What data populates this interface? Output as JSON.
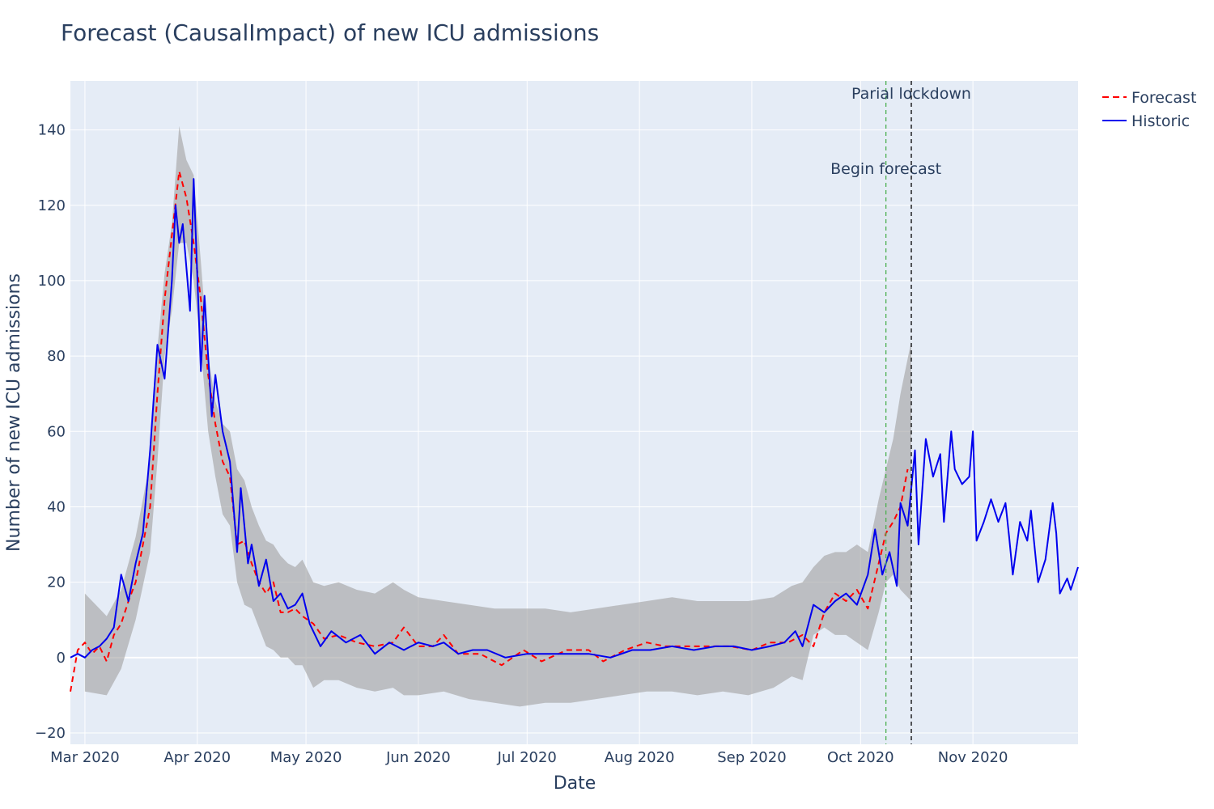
{
  "chart_data": {
    "type": "line",
    "title": "Forecast (CausalImpact) of new ICU admissions",
    "xlabel": "Date",
    "ylabel": "Number of new ICU admissions",
    "xlim": [
      "2020-02-26",
      "2020-11-30"
    ],
    "ylim": [
      -23,
      153
    ],
    "grid": true,
    "legend_position": "top-right",
    "colors": {
      "plot_background": "#e5ecf6",
      "grid": "#ffffff",
      "forecast": "#ff0000",
      "historic": "#0000ee",
      "band": "#a0a0a0",
      "partial_lockdown_line": "#4caf50",
      "begin_forecast_line": "#000000"
    },
    "x_ticks": [
      {
        "date": "2020-03-01",
        "label": "Mar 2020"
      },
      {
        "date": "2020-04-01",
        "label": "Apr 2020"
      },
      {
        "date": "2020-05-01",
        "label": "May 2020"
      },
      {
        "date": "2020-06-01",
        "label": "Jun 2020"
      },
      {
        "date": "2020-07-01",
        "label": "Jul 2020"
      },
      {
        "date": "2020-08-01",
        "label": "Aug 2020"
      },
      {
        "date": "2020-09-01",
        "label": "Sep 2020"
      },
      {
        "date": "2020-10-01",
        "label": "Oct 2020"
      },
      {
        "date": "2020-11-01",
        "label": "Nov 2020"
      }
    ],
    "y_ticks": [
      -20,
      0,
      20,
      40,
      60,
      80,
      100,
      120,
      140
    ],
    "vlines": [
      {
        "date": "2020-10-08",
        "label": "Begin forecast",
        "style": "dashed"
      },
      {
        "date": "2020-10-15",
        "label": "Parial lockdown",
        "style": "dashed"
      }
    ],
    "series": [
      {
        "name": "Forecast",
        "style": "dashed",
        "points": [
          [
            "2020-02-26",
            -9
          ],
          [
            "2020-02-28",
            2
          ],
          [
            "2020-03-01",
            4
          ],
          [
            "2020-03-03",
            1
          ],
          [
            "2020-03-05",
            3
          ],
          [
            "2020-03-07",
            -1
          ],
          [
            "2020-03-09",
            6
          ],
          [
            "2020-03-11",
            9
          ],
          [
            "2020-03-13",
            15
          ],
          [
            "2020-03-15",
            20
          ],
          [
            "2020-03-17",
            30
          ],
          [
            "2020-03-19",
            40
          ],
          [
            "2020-03-21",
            70
          ],
          [
            "2020-03-23",
            95
          ],
          [
            "2020-03-25",
            112
          ],
          [
            "2020-03-27",
            129
          ],
          [
            "2020-03-29",
            122
          ],
          [
            "2020-03-31",
            110
          ],
          [
            "2020-04-02",
            95
          ],
          [
            "2020-04-04",
            75
          ],
          [
            "2020-04-06",
            62
          ],
          [
            "2020-04-08",
            52
          ],
          [
            "2020-04-10",
            48
          ],
          [
            "2020-04-12",
            30
          ],
          [
            "2020-04-14",
            31
          ],
          [
            "2020-04-16",
            25
          ],
          [
            "2020-04-18",
            20
          ],
          [
            "2020-04-20",
            17
          ],
          [
            "2020-04-22",
            20
          ],
          [
            "2020-04-24",
            12
          ],
          [
            "2020-04-26",
            12
          ],
          [
            "2020-04-28",
            13
          ],
          [
            "2020-04-30",
            11
          ],
          [
            "2020-05-03",
            9
          ],
          [
            "2020-05-06",
            5
          ],
          [
            "2020-05-10",
            6
          ],
          [
            "2020-05-15",
            4
          ],
          [
            "2020-05-20",
            3
          ],
          [
            "2020-05-25",
            4
          ],
          [
            "2020-05-28",
            8
          ],
          [
            "2020-06-01",
            3
          ],
          [
            "2020-06-05",
            3
          ],
          [
            "2020-06-08",
            6
          ],
          [
            "2020-06-12",
            1
          ],
          [
            "2020-06-18",
            1
          ],
          [
            "2020-06-24",
            -2
          ],
          [
            "2020-06-30",
            2
          ],
          [
            "2020-07-05",
            -1
          ],
          [
            "2020-07-12",
            2
          ],
          [
            "2020-07-18",
            2
          ],
          [
            "2020-07-22",
            -1
          ],
          [
            "2020-07-28",
            2
          ],
          [
            "2020-08-03",
            4
          ],
          [
            "2020-08-08",
            3
          ],
          [
            "2020-08-14",
            3
          ],
          [
            "2020-08-20",
            3
          ],
          [
            "2020-08-26",
            3
          ],
          [
            "2020-09-01",
            2
          ],
          [
            "2020-09-06",
            4
          ],
          [
            "2020-09-11",
            4
          ],
          [
            "2020-09-15",
            6
          ],
          [
            "2020-09-18",
            3
          ],
          [
            "2020-09-21",
            12
          ],
          [
            "2020-09-24",
            17
          ],
          [
            "2020-09-27",
            15
          ],
          [
            "2020-09-30",
            18
          ],
          [
            "2020-10-03",
            13
          ],
          [
            "2020-10-06",
            25
          ],
          [
            "2020-10-08",
            33
          ],
          [
            "2020-10-10",
            36
          ],
          [
            "2020-10-12",
            40
          ],
          [
            "2020-10-14",
            50
          ]
        ]
      },
      {
        "name": "Historic",
        "style": "solid",
        "points": [
          [
            "2020-02-26",
            0
          ],
          [
            "2020-02-28",
            1
          ],
          [
            "2020-03-01",
            0
          ],
          [
            "2020-03-03",
            2
          ],
          [
            "2020-03-05",
            3
          ],
          [
            "2020-03-07",
            5
          ],
          [
            "2020-03-09",
            8
          ],
          [
            "2020-03-11",
            22
          ],
          [
            "2020-03-13",
            15
          ],
          [
            "2020-03-15",
            25
          ],
          [
            "2020-03-17",
            33
          ],
          [
            "2020-03-19",
            55
          ],
          [
            "2020-03-21",
            83
          ],
          [
            "2020-03-23",
            74
          ],
          [
            "2020-03-25",
            100
          ],
          [
            "2020-03-26",
            120
          ],
          [
            "2020-03-27",
            110
          ],
          [
            "2020-03-28",
            115
          ],
          [
            "2020-03-30",
            92
          ],
          [
            "2020-03-31",
            127
          ],
          [
            "2020-04-02",
            76
          ],
          [
            "2020-04-03",
            96
          ],
          [
            "2020-04-05",
            64
          ],
          [
            "2020-04-06",
            75
          ],
          [
            "2020-04-08",
            60
          ],
          [
            "2020-04-10",
            52
          ],
          [
            "2020-04-12",
            28
          ],
          [
            "2020-04-13",
            45
          ],
          [
            "2020-04-15",
            25
          ],
          [
            "2020-04-16",
            30
          ],
          [
            "2020-04-18",
            19
          ],
          [
            "2020-04-20",
            26
          ],
          [
            "2020-04-22",
            15
          ],
          [
            "2020-04-24",
            17
          ],
          [
            "2020-04-26",
            13
          ],
          [
            "2020-04-28",
            14
          ],
          [
            "2020-04-30",
            17
          ],
          [
            "2020-05-02",
            9
          ],
          [
            "2020-05-05",
            3
          ],
          [
            "2020-05-08",
            7
          ],
          [
            "2020-05-12",
            4
          ],
          [
            "2020-05-16",
            6
          ],
          [
            "2020-05-20",
            1
          ],
          [
            "2020-05-24",
            4
          ],
          [
            "2020-05-28",
            2
          ],
          [
            "2020-06-01",
            4
          ],
          [
            "2020-06-05",
            3
          ],
          [
            "2020-06-08",
            4
          ],
          [
            "2020-06-12",
            1
          ],
          [
            "2020-06-16",
            2
          ],
          [
            "2020-06-20",
            2
          ],
          [
            "2020-06-25",
            0
          ],
          [
            "2020-07-01",
            1
          ],
          [
            "2020-07-06",
            1
          ],
          [
            "2020-07-12",
            1
          ],
          [
            "2020-07-18",
            1
          ],
          [
            "2020-07-24",
            0
          ],
          [
            "2020-07-30",
            2
          ],
          [
            "2020-08-04",
            2
          ],
          [
            "2020-08-10",
            3
          ],
          [
            "2020-08-16",
            2
          ],
          [
            "2020-08-22",
            3
          ],
          [
            "2020-08-27",
            3
          ],
          [
            "2020-09-01",
            2
          ],
          [
            "2020-09-06",
            3
          ],
          [
            "2020-09-10",
            4
          ],
          [
            "2020-09-13",
            7
          ],
          [
            "2020-09-15",
            3
          ],
          [
            "2020-09-18",
            14
          ],
          [
            "2020-09-21",
            12
          ],
          [
            "2020-09-24",
            15
          ],
          [
            "2020-09-27",
            17
          ],
          [
            "2020-09-30",
            14
          ],
          [
            "2020-10-03",
            22
          ],
          [
            "2020-10-05",
            34
          ],
          [
            "2020-10-07",
            22
          ],
          [
            "2020-10-09",
            28
          ],
          [
            "2020-10-11",
            19
          ],
          [
            "2020-10-12",
            41
          ],
          [
            "2020-10-14",
            35
          ],
          [
            "2020-10-16",
            55
          ],
          [
            "2020-10-17",
            30
          ],
          [
            "2020-10-19",
            58
          ],
          [
            "2020-10-21",
            48
          ],
          [
            "2020-10-23",
            54
          ],
          [
            "2020-10-24",
            36
          ],
          [
            "2020-10-26",
            60
          ],
          [
            "2020-10-27",
            50
          ],
          [
            "2020-10-29",
            46
          ],
          [
            "2020-10-31",
            48
          ],
          [
            "2020-11-01",
            60
          ],
          [
            "2020-11-02",
            31
          ],
          [
            "2020-11-04",
            36
          ],
          [
            "2020-11-06",
            42
          ],
          [
            "2020-11-08",
            36
          ],
          [
            "2020-11-10",
            41
          ],
          [
            "2020-11-11",
            32
          ],
          [
            "2020-11-12",
            22
          ],
          [
            "2020-11-14",
            36
          ],
          [
            "2020-11-16",
            31
          ],
          [
            "2020-11-17",
            39
          ],
          [
            "2020-11-19",
            20
          ],
          [
            "2020-11-21",
            26
          ],
          [
            "2020-11-23",
            41
          ],
          [
            "2020-11-24",
            33
          ],
          [
            "2020-11-25",
            17
          ],
          [
            "2020-11-27",
            21
          ],
          [
            "2020-11-28",
            18
          ],
          [
            "2020-11-30",
            24
          ]
        ]
      }
    ],
    "interval_band": [
      [
        "2020-03-01",
        17,
        -9
      ],
      [
        "2020-03-07",
        11,
        -10
      ],
      [
        "2020-03-11",
        18,
        -3
      ],
      [
        "2020-03-15",
        32,
        10
      ],
      [
        "2020-03-19",
        52,
        28
      ],
      [
        "2020-03-21",
        82,
        52
      ],
      [
        "2020-03-23",
        102,
        80
      ],
      [
        "2020-03-25",
        115,
        92
      ],
      [
        "2020-03-27",
        141,
        110
      ],
      [
        "2020-03-29",
        132,
        110
      ],
      [
        "2020-03-31",
        128,
        100
      ],
      [
        "2020-04-02",
        105,
        82
      ],
      [
        "2020-04-04",
        80,
        60
      ],
      [
        "2020-04-06",
        68,
        48
      ],
      [
        "2020-04-08",
        62,
        38
      ],
      [
        "2020-04-10",
        60,
        35
      ],
      [
        "2020-04-12",
        50,
        20
      ],
      [
        "2020-04-14",
        47,
        14
      ],
      [
        "2020-04-16",
        40,
        13
      ],
      [
        "2020-04-18",
        35,
        8
      ],
      [
        "2020-04-20",
        31,
        3
      ],
      [
        "2020-04-22",
        30,
        2
      ],
      [
        "2020-04-24",
        27,
        0
      ],
      [
        "2020-04-26",
        25,
        0
      ],
      [
        "2020-04-28",
        24,
        -2
      ],
      [
        "2020-04-30",
        26,
        -2
      ],
      [
        "2020-05-03",
        20,
        -8
      ],
      [
        "2020-05-06",
        19,
        -6
      ],
      [
        "2020-05-10",
        20,
        -6
      ],
      [
        "2020-05-15",
        18,
        -8
      ],
      [
        "2020-05-20",
        17,
        -9
      ],
      [
        "2020-05-25",
        20,
        -8
      ],
      [
        "2020-05-28",
        18,
        -10
      ],
      [
        "2020-06-01",
        16,
        -10
      ],
      [
        "2020-06-08",
        15,
        -9
      ],
      [
        "2020-06-15",
        14,
        -11
      ],
      [
        "2020-06-22",
        13,
        -12
      ],
      [
        "2020-06-29",
        13,
        -13
      ],
      [
        "2020-07-06",
        13,
        -12
      ],
      [
        "2020-07-13",
        12,
        -12
      ],
      [
        "2020-07-20",
        13,
        -11
      ],
      [
        "2020-07-27",
        14,
        -10
      ],
      [
        "2020-08-03",
        15,
        -9
      ],
      [
        "2020-08-10",
        16,
        -9
      ],
      [
        "2020-08-17",
        15,
        -10
      ],
      [
        "2020-08-24",
        15,
        -9
      ],
      [
        "2020-08-31",
        15,
        -10
      ],
      [
        "2020-09-07",
        16,
        -8
      ],
      [
        "2020-09-12",
        19,
        -5
      ],
      [
        "2020-09-15",
        20,
        -6
      ],
      [
        "2020-09-18",
        24,
        6
      ],
      [
        "2020-09-21",
        27,
        8
      ],
      [
        "2020-09-24",
        28,
        6
      ],
      [
        "2020-09-27",
        28,
        6
      ],
      [
        "2020-09-30",
        30,
        4
      ],
      [
        "2020-10-03",
        28,
        2
      ],
      [
        "2020-10-06",
        42,
        12
      ],
      [
        "2020-10-08",
        50,
        20
      ],
      [
        "2020-10-10",
        58,
        22
      ],
      [
        "2020-10-12",
        70,
        18
      ],
      [
        "2020-10-15",
        84,
        15
      ]
    ]
  }
}
